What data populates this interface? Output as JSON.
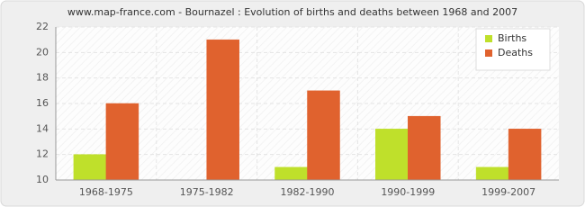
{
  "chart_data": {
    "type": "bar",
    "title": "www.map-france.com - Bournazel : Evolution of births and deaths between 1968 and 2007",
    "categories": [
      "1968-1975",
      "1975-1982",
      "1982-1990",
      "1990-1999",
      "1999-2007"
    ],
    "series": [
      {
        "name": "Births",
        "color": "#bfe02b",
        "values": [
          12,
          10,
          11,
          14,
          11
        ]
      },
      {
        "name": "Deaths",
        "color": "#e0622e",
        "values": [
          16,
          21,
          17,
          15,
          14
        ]
      }
    ],
    "ylim": [
      10,
      22
    ],
    "yticks": [
      10,
      12,
      14,
      16,
      18,
      20,
      22
    ],
    "grid": true,
    "legend": "top-right"
  }
}
